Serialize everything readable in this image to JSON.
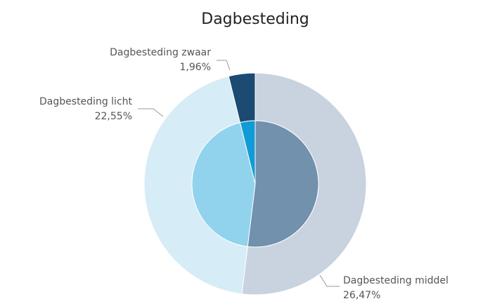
{
  "chart_data": {
    "type": "pie",
    "title": "Dagbesteding",
    "categories": [
      "Dagbesteding middel",
      "Dagbesteding licht",
      "Dagbesteding zwaar"
    ],
    "values": [
      26.47,
      22.55,
      1.96
    ],
    "value_labels": [
      "26,47%",
      "22,55%",
      "1,96%"
    ],
    "colors": [
      "#c8d3df",
      "#d6ecf7",
      "#1b4a72"
    ],
    "inner_colors": [
      "#7191ad",
      "#91d3ec",
      "#119bd6"
    ]
  }
}
